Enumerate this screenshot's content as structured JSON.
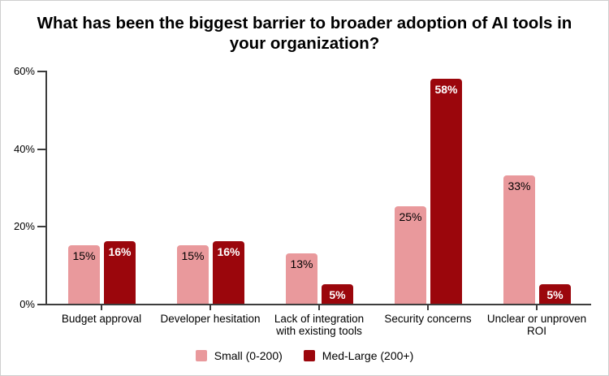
{
  "chart_data": {
    "type": "bar",
    "title": "What has been the biggest barrier to broader adoption of AI tools in your organization?",
    "categories": [
      "Budget approval",
      "Developer hesitation",
      "Lack of integration\nwith existing tools",
      "Security concerns",
      "Unclear or unproven\nROI"
    ],
    "series": [
      {
        "name": "Small (0-200)",
        "color": "#E9999C",
        "label_color": "#000000",
        "values": [
          15,
          15,
          13,
          25,
          33
        ]
      },
      {
        "name": "Med-Large (200+)",
        "color": "#9B060C",
        "label_color": "#FFFFFF",
        "values": [
          16,
          16,
          5,
          58,
          5
        ]
      }
    ],
    "value_suffix": "%",
    "y_axis": {
      "tick_labels": [
        "0%",
        "20%",
        "40%",
        "60%"
      ],
      "tick_values": [
        0,
        20,
        40,
        60
      ],
      "max": 60
    },
    "grid": false,
    "legend_position": "bottom",
    "axis_color": "#3d3d3d",
    "background_color": "#ffffff"
  }
}
